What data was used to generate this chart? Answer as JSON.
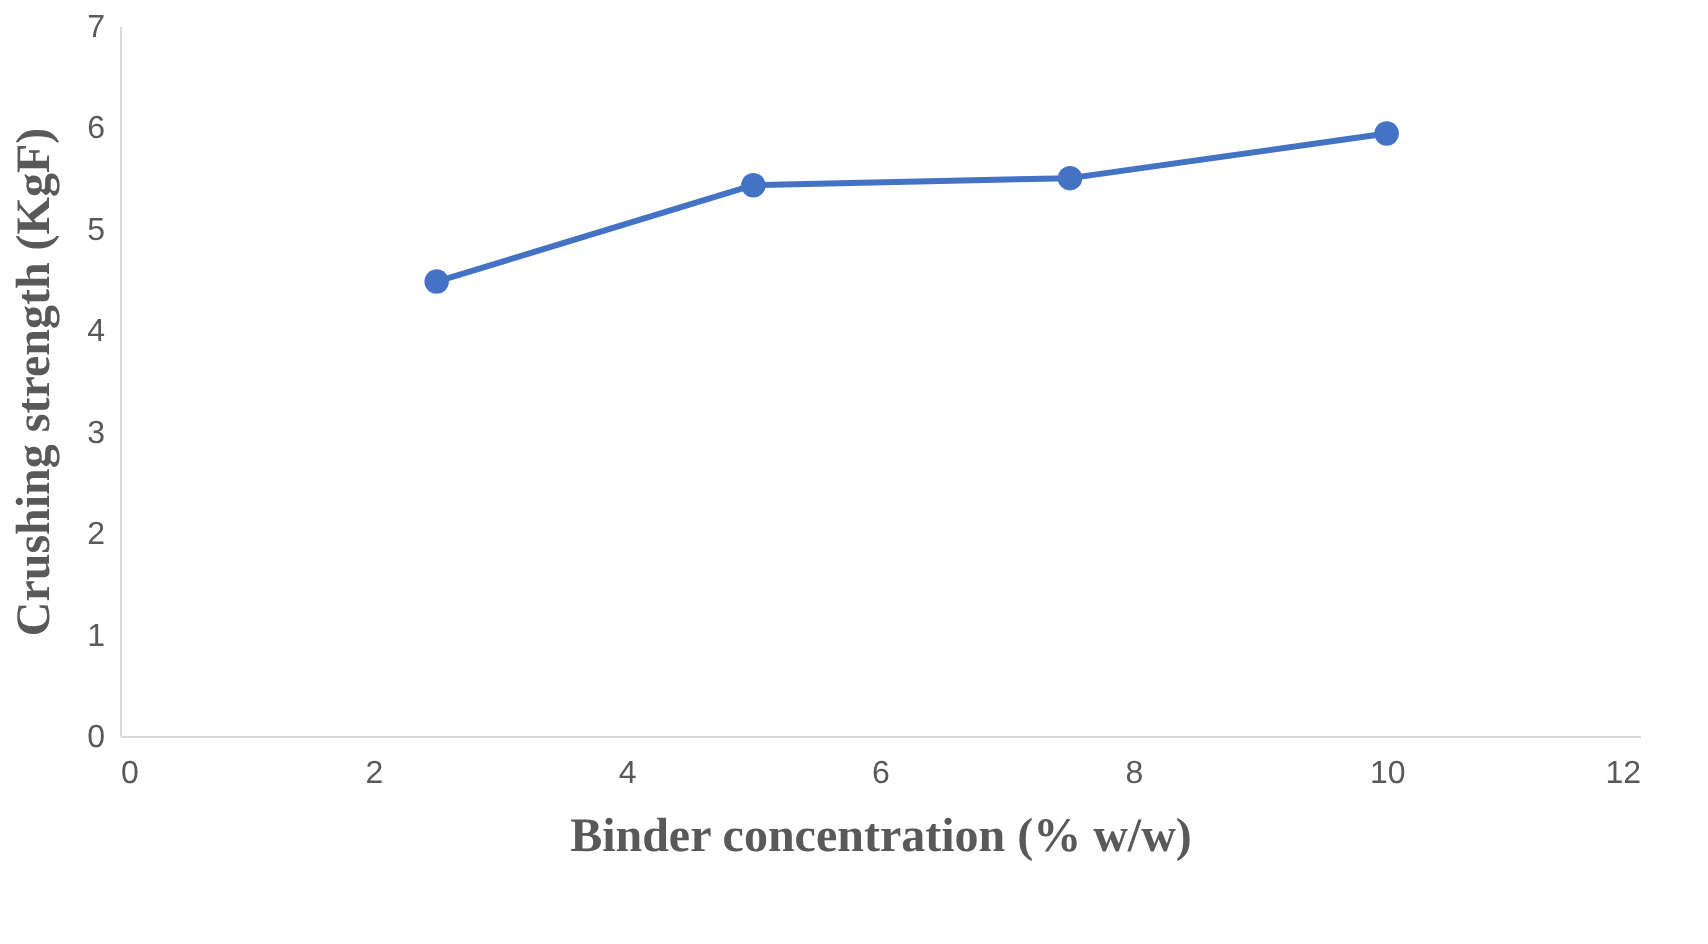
{
  "chart_data": {
    "type": "line",
    "xlabel": "Binder concentration  (% w/w)",
    "ylabel": "Crushing strength (KgF)",
    "x": [
      2.5,
      5,
      7.5,
      10
    ],
    "series": [
      {
        "color": "#4472c4",
        "values": [
          4.48,
          5.43,
          5.5,
          5.94
        ]
      }
    ],
    "xlim": [
      0,
      12
    ],
    "xticks": [
      0,
      2,
      4,
      6,
      8,
      10,
      12
    ],
    "ylim": [
      0,
      7
    ],
    "yticks": [
      0,
      1,
      2,
      3,
      4,
      5,
      6,
      7
    ],
    "grid": false,
    "marker": "circle",
    "line_style": "solid",
    "legend": false
  }
}
